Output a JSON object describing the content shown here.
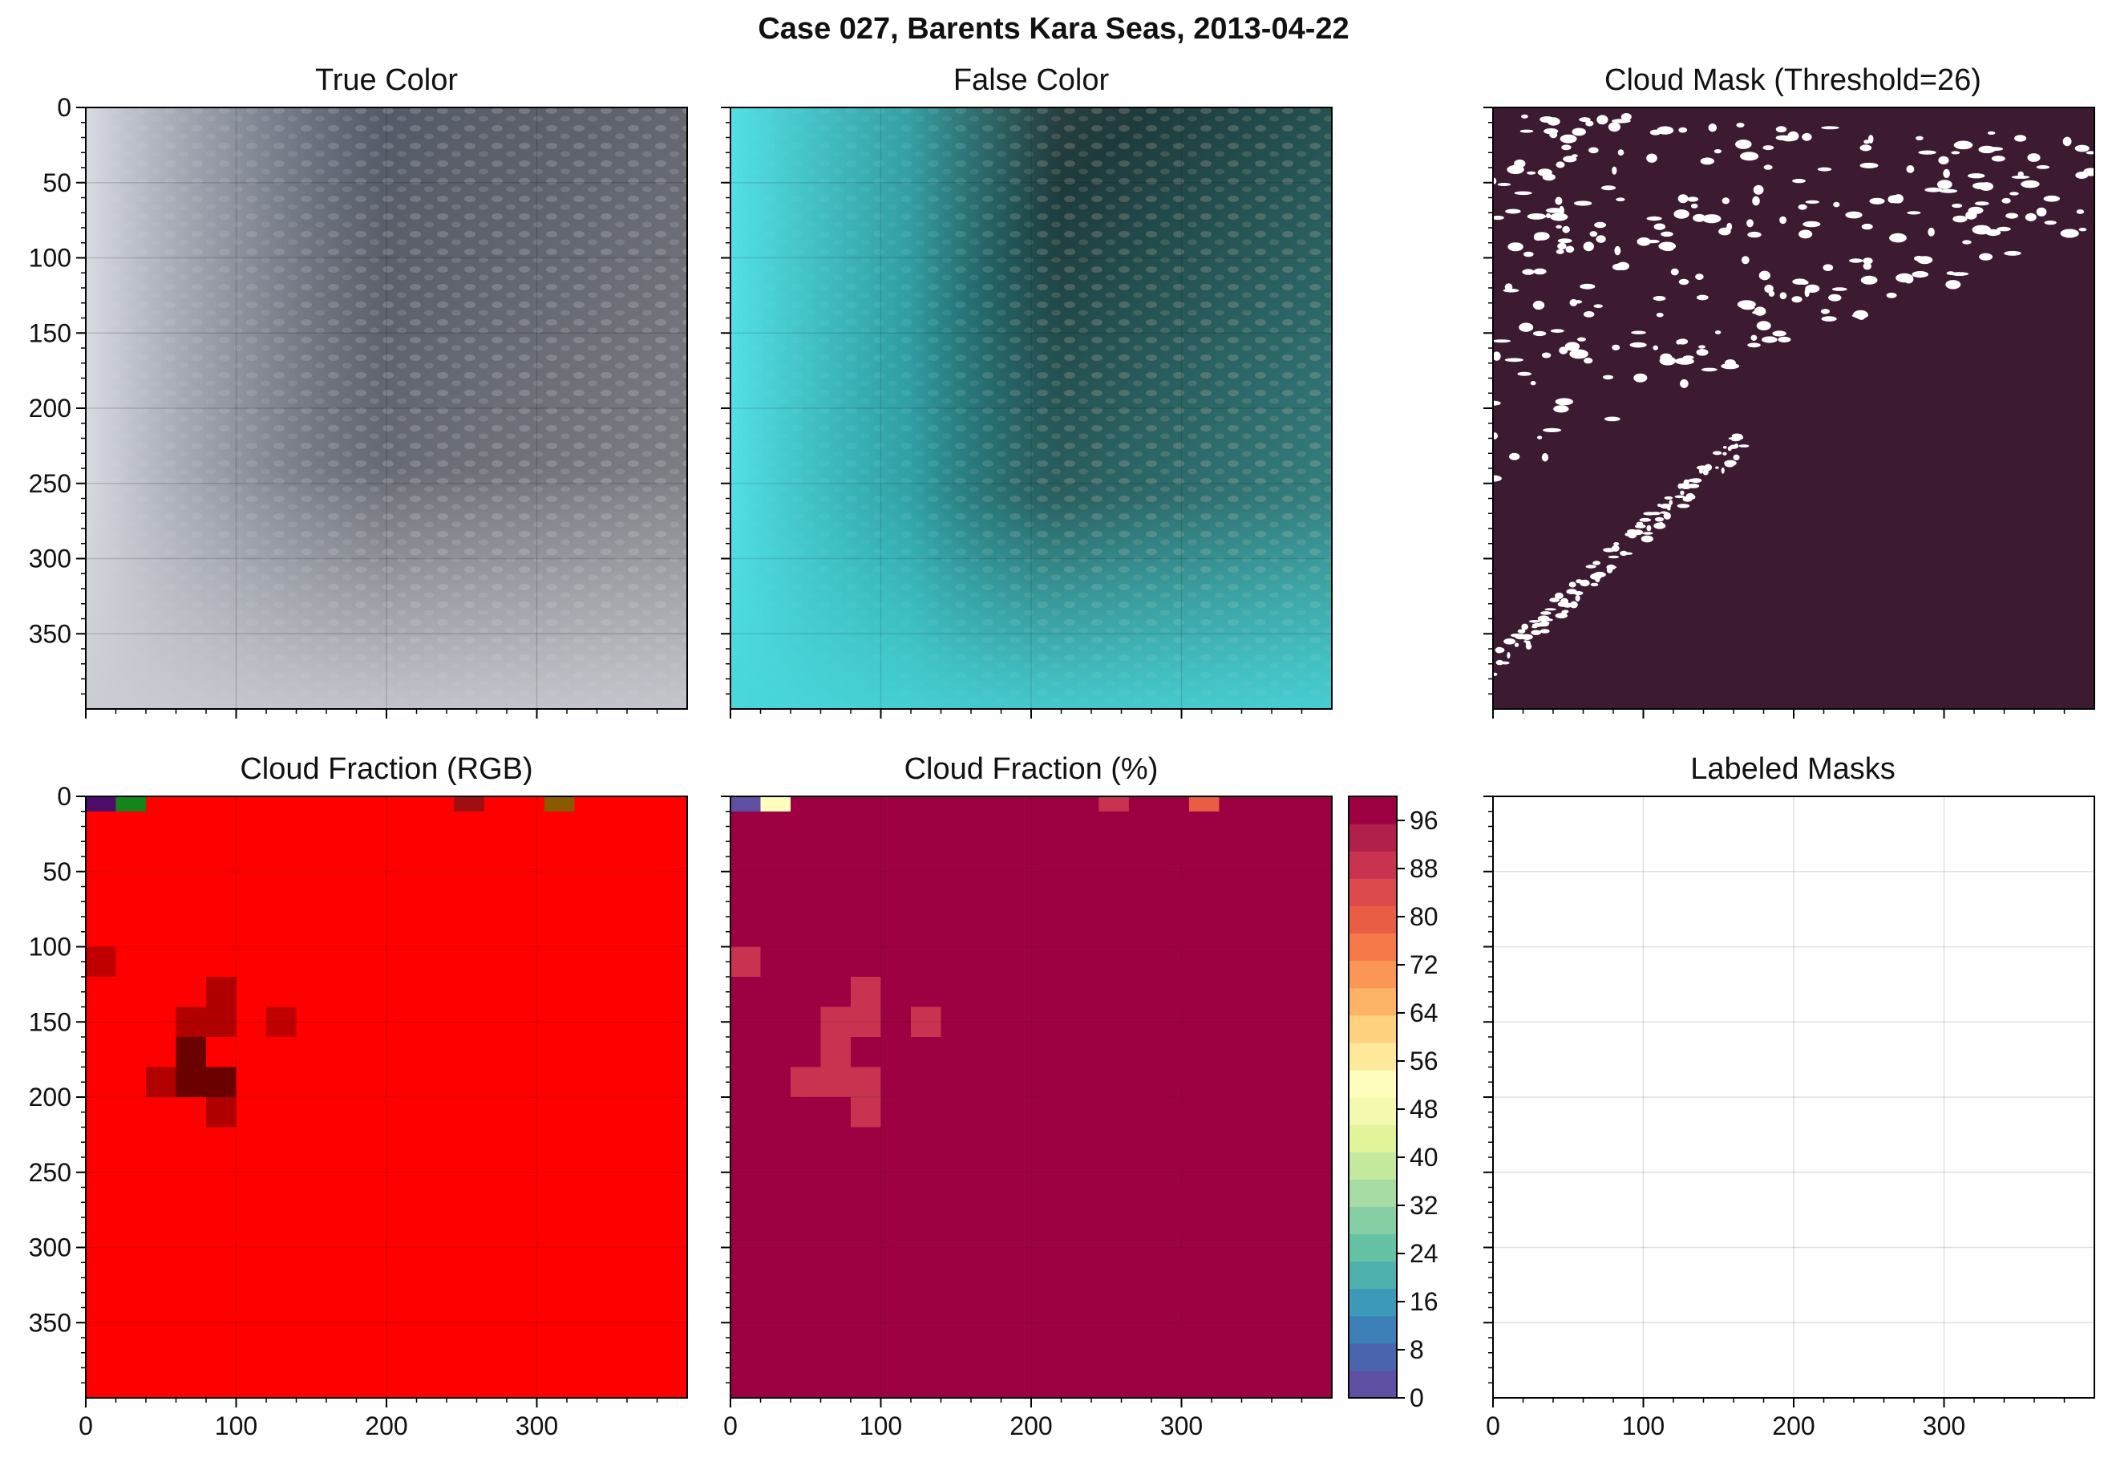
{
  "suptitle": "Case 027, Barents Kara Seas, 2013-04-22",
  "panels": {
    "true_color": {
      "title": "True Color"
    },
    "false_color": {
      "title": "False Color"
    },
    "cloud_mask": {
      "title": "Cloud Mask (Threshold=26)"
    },
    "cloud_fraction_rgb": {
      "title": "Cloud Fraction (RGB)"
    },
    "cloud_fraction_pct": {
      "title": "Cloud Fraction (%)"
    },
    "labeled_masks": {
      "title": "Labeled Masks"
    }
  },
  "axes": {
    "y_ticks": [
      "0",
      "50",
      "100",
      "150",
      "200",
      "250",
      "300",
      "350"
    ],
    "x_ticks": [
      "0",
      "100",
      "200",
      "300"
    ]
  },
  "colorbar": {
    "ticks": [
      "0",
      "8",
      "16",
      "24",
      "32",
      "40",
      "48",
      "56",
      "64",
      "72",
      "80",
      "88",
      "96"
    ],
    "colors": [
      "#5e4fa2",
      "#4a65ad",
      "#3d7fb7",
      "#3d99b8",
      "#4fb1ad",
      "#66c2a5",
      "#86cfa5",
      "#a7dca4",
      "#c5e99e",
      "#e2f49a",
      "#f3fab0",
      "#fffebe",
      "#fee99a",
      "#fed27f",
      "#fdb366",
      "#fa9656",
      "#f67a49",
      "#ea5d45",
      "#dc4a4c",
      "#c93350",
      "#b0204b",
      "#9e0142"
    ],
    "accent": "#9e0142"
  },
  "chart_data": [
    {
      "type": "heatmap",
      "title": "Cloud Fraction (RGB)",
      "xlim": [
        0,
        400
      ],
      "ylim": [
        400,
        0
      ],
      "background_value": 100,
      "background_color": "#ff0000",
      "cells": [
        {
          "x0": 0,
          "y0": 0,
          "x1": 20,
          "y1": 10,
          "color": "#4b0d6b"
        },
        {
          "x0": 20,
          "y0": 0,
          "x1": 40,
          "y1": 10,
          "color": "#14851a"
        },
        {
          "x0": 245,
          "y0": 0,
          "x1": 265,
          "y1": 10,
          "color": "#a00f0f"
        },
        {
          "x0": 305,
          "y0": 0,
          "x1": 325,
          "y1": 10,
          "color": "#8a5a00"
        },
        {
          "x0": 0,
          "y0": 100,
          "x1": 20,
          "y1": 120,
          "color": "#c00000"
        },
        {
          "x0": 80,
          "y0": 120,
          "x1": 100,
          "y1": 140,
          "color": "#b00000"
        },
        {
          "x0": 60,
          "y0": 140,
          "x1": 100,
          "y1": 160,
          "color": "#b00000"
        },
        {
          "x0": 120,
          "y0": 140,
          "x1": 140,
          "y1": 160,
          "color": "#c00000"
        },
        {
          "x0": 60,
          "y0": 160,
          "x1": 80,
          "y1": 180,
          "color": "#6a0000"
        },
        {
          "x0": 40,
          "y0": 180,
          "x1": 60,
          "y1": 200,
          "color": "#b00000"
        },
        {
          "x0": 60,
          "y0": 180,
          "x1": 100,
          "y1": 200,
          "color": "#6a0000"
        },
        {
          "x0": 80,
          "y0": 200,
          "x1": 100,
          "y1": 220,
          "color": "#b00000"
        }
      ]
    },
    {
      "type": "heatmap",
      "title": "Cloud Fraction (%)",
      "xlim": [
        0,
        400
      ],
      "ylim": [
        400,
        0
      ],
      "colorbar_range": [
        0,
        100
      ],
      "background_value": 100,
      "cells": [
        {
          "x0": 0,
          "y0": 0,
          "x1": 20,
          "y1": 10,
          "value": 4
        },
        {
          "x0": 20,
          "y0": 0,
          "x1": 40,
          "y1": 10,
          "value": 52
        },
        {
          "x0": 245,
          "y0": 0,
          "x1": 265,
          "y1": 10,
          "value": 87
        },
        {
          "x0": 305,
          "y0": 0,
          "x1": 325,
          "y1": 10,
          "value": 80
        },
        {
          "x0": 0,
          "y0": 100,
          "x1": 20,
          "y1": 120,
          "value": 87
        },
        {
          "x0": 80,
          "y0": 120,
          "x1": 100,
          "y1": 140,
          "value": 87
        },
        {
          "x0": 60,
          "y0": 140,
          "x1": 100,
          "y1": 160,
          "value": 87
        },
        {
          "x0": 120,
          "y0": 140,
          "x1": 140,
          "y1": 160,
          "value": 87
        },
        {
          "x0": 60,
          "y0": 160,
          "x1": 80,
          "y1": 180,
          "value": 87
        },
        {
          "x0": 40,
          "y0": 180,
          "x1": 60,
          "y1": 200,
          "value": 87
        },
        {
          "x0": 60,
          "y0": 180,
          "x1": 100,
          "y1": 200,
          "value": 87
        },
        {
          "x0": 80,
          "y0": 200,
          "x1": 100,
          "y1": 220,
          "value": 87
        }
      ]
    }
  ]
}
